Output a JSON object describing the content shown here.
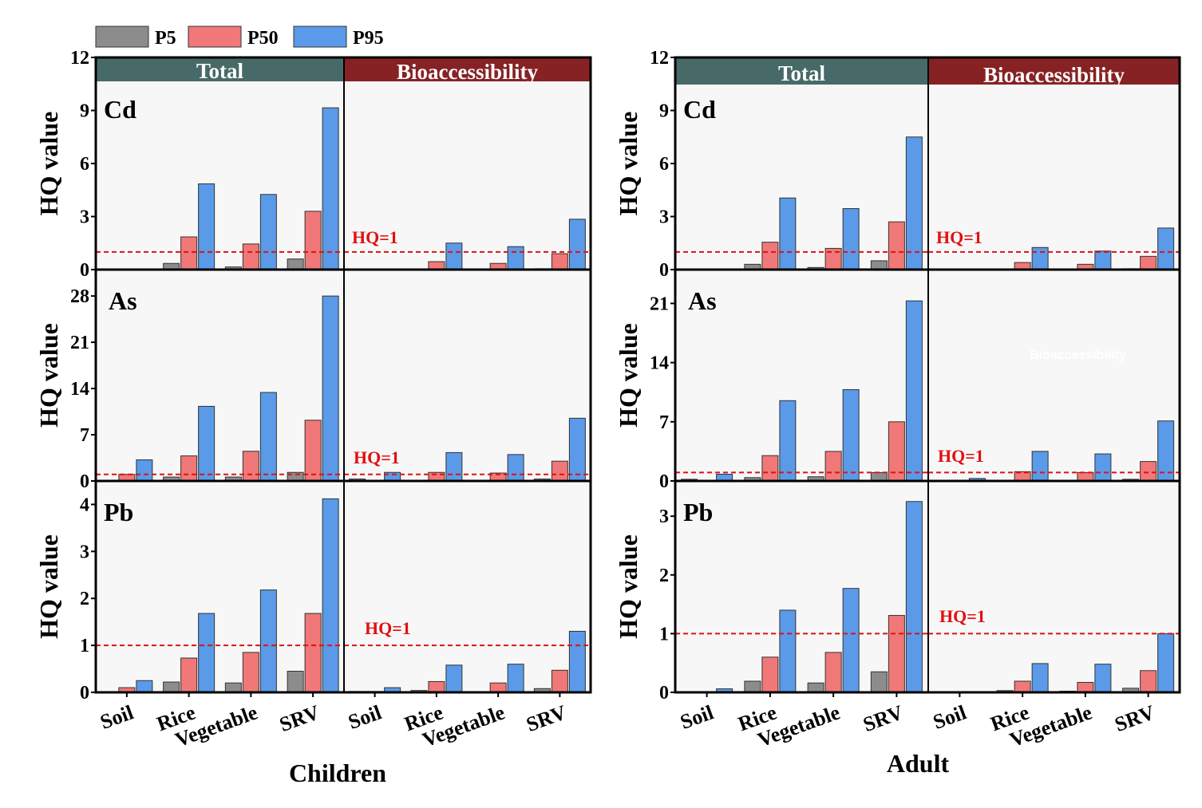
{
  "legend": [
    {
      "label": "P5",
      "color": "#8c8c8c"
    },
    {
      "label": "P50",
      "color": "#f07878"
    },
    {
      "label": "P95",
      "color": "#5a9ae8"
    }
  ],
  "colors": {
    "total_header": "#476a69",
    "bio_header": "#862224",
    "plot_bg": "#f7f7f7",
    "threshold": "#e01010"
  },
  "chart_data": [
    {
      "type": "bar",
      "group_title": "Children",
      "ylabel": "HQ value",
      "headers": [
        "Total",
        "Bioaccessibility"
      ],
      "categories": [
        "Soil",
        "Rice",
        "Vegetable",
        "SRV"
      ],
      "threshold": {
        "value": 1,
        "label": "HQ=1"
      },
      "panels": [
        {
          "metal": "Cd",
          "ylim": [
            0,
            12
          ],
          "ticks": [
            0,
            3,
            6,
            9,
            12
          ],
          "total": {
            "P5": [
              0,
              0.35,
              0.15,
              0.6
            ],
            "P50": [
              0,
              1.85,
              1.45,
              3.3
            ],
            "P95": [
              0,
              4.85,
              4.25,
              9.15
            ]
          },
          "bio": {
            "P5": [
              0,
              0,
              0,
              0.05
            ],
            "P50": [
              0,
              0.45,
              0.35,
              0.9
            ],
            "P95": [
              0,
              1.5,
              1.3,
              2.85
            ]
          }
        },
        {
          "metal": "As",
          "ylim": [
            0,
            32
          ],
          "ticks": [
            0,
            7,
            14,
            21,
            28
          ],
          "total": {
            "P5": [
              0.05,
              0.6,
              0.6,
              1.3
            ],
            "P50": [
              1.0,
              3.8,
              4.5,
              9.2
            ],
            "P95": [
              3.2,
              11.3,
              13.4,
              28
            ]
          },
          "bio": {
            "P5": [
              0.3,
              0,
              0,
              0.3
            ],
            "P50": [
              0.1,
              1.3,
              1.2,
              3.0
            ],
            "P95": [
              1.3,
              4.3,
              4.0,
              9.5
            ]
          }
        },
        {
          "metal": "Pb",
          "ylim": [
            0,
            4.5
          ],
          "ticks": [
            0,
            1,
            2,
            3,
            4
          ],
          "total": {
            "P5": [
              0,
              0.22,
              0.2,
              0.45
            ],
            "P50": [
              0.1,
              0.73,
              0.85,
              1.68
            ],
            "P95": [
              0.25,
              1.68,
              2.18,
              4.12
            ]
          },
          "bio": {
            "P5": [
              0.02,
              0.04,
              0.01,
              0.08
            ],
            "P50": [
              0.02,
              0.23,
              0.2,
              0.47
            ],
            "P95": [
              0.1,
              0.58,
              0.6,
              1.3
            ]
          }
        }
      ]
    },
    {
      "type": "bar",
      "group_title": "Adult",
      "ylabel": "HQ value",
      "headers": [
        "Total",
        "Bioaccessibility"
      ],
      "categories": [
        "Soil",
        "Rice",
        "Vegetable",
        "SRV"
      ],
      "threshold": {
        "value": 1,
        "label": "HQ=1"
      },
      "watermark": "Bioaccessibility",
      "panels": [
        {
          "metal": "Cd",
          "ylim": [
            0,
            12
          ],
          "ticks": [
            0,
            3,
            6,
            9,
            12
          ],
          "total": {
            "P5": [
              0,
              0.3,
              0.12,
              0.5
            ],
            "P50": [
              0,
              1.55,
              1.2,
              2.7
            ],
            "P95": [
              0,
              4.05,
              3.45,
              7.5
            ]
          },
          "bio": {
            "P5": [
              0,
              0,
              0,
              0.05
            ],
            "P50": [
              0,
              0.4,
              0.3,
              0.75
            ],
            "P95": [
              0,
              1.25,
              1.05,
              2.35
            ]
          }
        },
        {
          "metal": "As",
          "ylim": [
            0,
            25
          ],
          "ticks": [
            0,
            7,
            14,
            21
          ],
          "total": {
            "P5": [
              0.2,
              0.4,
              0.5,
              1.0
            ],
            "P50": [
              0.05,
              3.0,
              3.5,
              7.0
            ],
            "P95": [
              0.8,
              9.5,
              10.8,
              21.3
            ]
          },
          "bio": {
            "P5": [
              0,
              0,
              0,
              0.2
            ],
            "P50": [
              0,
              1.1,
              1.0,
              2.3
            ],
            "P95": [
              0.3,
              3.5,
              3.2,
              7.1
            ]
          }
        },
        {
          "metal": "Pb",
          "ylim": [
            0,
            3.6
          ],
          "ticks": [
            0,
            1,
            2,
            3
          ],
          "total": {
            "P5": [
              0,
              0.19,
              0.16,
              0.35
            ],
            "P50": [
              0,
              0.6,
              0.68,
              1.31
            ],
            "P95": [
              0.06,
              1.4,
              1.77,
              3.25
            ]
          },
          "bio": {
            "P5": [
              0,
              0.03,
              0.02,
              0.07
            ],
            "P50": [
              0.01,
              0.19,
              0.17,
              0.37
            ],
            "P95": [
              0.01,
              0.49,
              0.48,
              1.0
            ]
          }
        }
      ]
    }
  ]
}
